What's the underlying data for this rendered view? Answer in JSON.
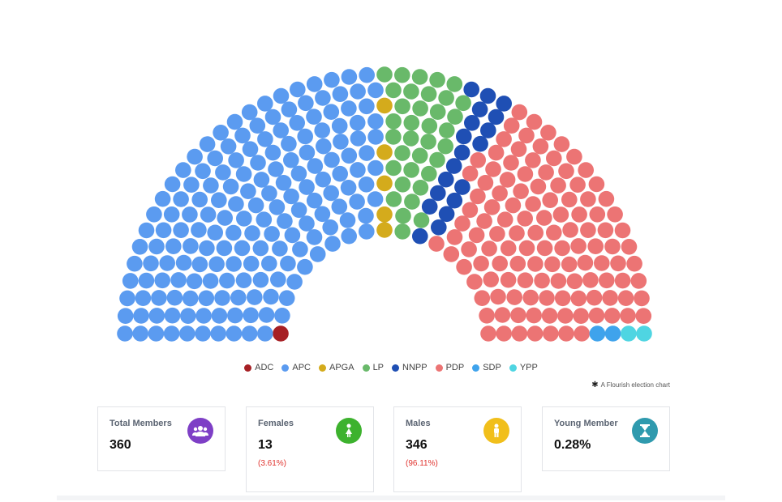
{
  "chart_data": {
    "type": "parliament",
    "title": "",
    "total_seats": 360,
    "series": [
      {
        "name": "ADC",
        "seats": 1,
        "color": "#a61f24"
      },
      {
        "name": "APC",
        "seats": 176,
        "color": "#5b9bf0"
      },
      {
        "name": "APGA",
        "seats": 5,
        "color": "#d4ab1c"
      },
      {
        "name": "LP",
        "seats": 35,
        "color": "#69b96a"
      },
      {
        "name": "NNPP",
        "seats": 19,
        "color": "#1f4fb4"
      },
      {
        "name": "PDP",
        "seats": 120,
        "color": "#ec7474"
      },
      {
        "name": "SDP",
        "seats": 2,
        "color": "#3fa3ec"
      },
      {
        "name": "YPP",
        "seats": 2,
        "color": "#4fd5e2"
      }
    ],
    "legend_position": "bottom-center"
  },
  "credit": {
    "text": "A Flourish election chart",
    "icon": "asterisk-icon"
  },
  "stats": [
    {
      "label": "Total Members",
      "value": "360",
      "sub": "",
      "icon": "users-icon",
      "icon_color": "#7e3fc6"
    },
    {
      "label": "Females",
      "value": "13",
      "sub": "(3.61%)",
      "icon": "female-icon",
      "icon_color": "#3db22e"
    },
    {
      "label": "Males",
      "value": "346",
      "sub": "(96.11%)",
      "icon": "male-icon",
      "icon_color": "#f1bf1b"
    },
    {
      "label": "Young Member",
      "value": "0.28%",
      "sub": "",
      "icon": "hourglass-icon",
      "icon_color": "#2f9aae"
    }
  ]
}
